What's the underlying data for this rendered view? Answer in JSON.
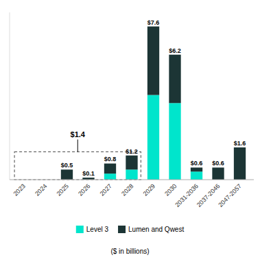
{
  "chart_data": {
    "type": "bar",
    "stacked": true,
    "categories": [
      "2023",
      "2024",
      "2025",
      "2026",
      "2027",
      "2028",
      "2029",
      "2030",
      "2031-2036",
      "2037-2046",
      "2047-2057"
    ],
    "series": [
      {
        "name": "Level 3",
        "color": "#00E5CC",
        "values": [
          0,
          0,
          0,
          0,
          0.3,
          0.5,
          4.2,
          3.8,
          0.4,
          0,
          0
        ]
      },
      {
        "name": "Lumen and Qwest",
        "color": "#1C3535",
        "values": [
          0,
          0,
          0.5,
          0.1,
          0.5,
          0.7,
          3.4,
          2.4,
          0.2,
          0.6,
          1.6
        ]
      }
    ],
    "totals": [
      null,
      null,
      0.5,
      0.1,
      0.8,
      1.2,
      7.6,
      6.2,
      0.6,
      0.6,
      1.6
    ],
    "total_labels": [
      null,
      null,
      "$0.5",
      "$0.1",
      "$0.8",
      "$1.2",
      "$7.6",
      "$6.2",
      "$0.6",
      "$0.6",
      "$1.6"
    ],
    "annotations": [
      {
        "text": "$1.4",
        "value": 1.38,
        "span": [
          "2023",
          "2028"
        ]
      }
    ],
    "subtitle": "($ in billions)",
    "ylim": [
      0,
      8.3
    ],
    "tick_labels": "x",
    "grid": false,
    "legend": "bottom"
  }
}
